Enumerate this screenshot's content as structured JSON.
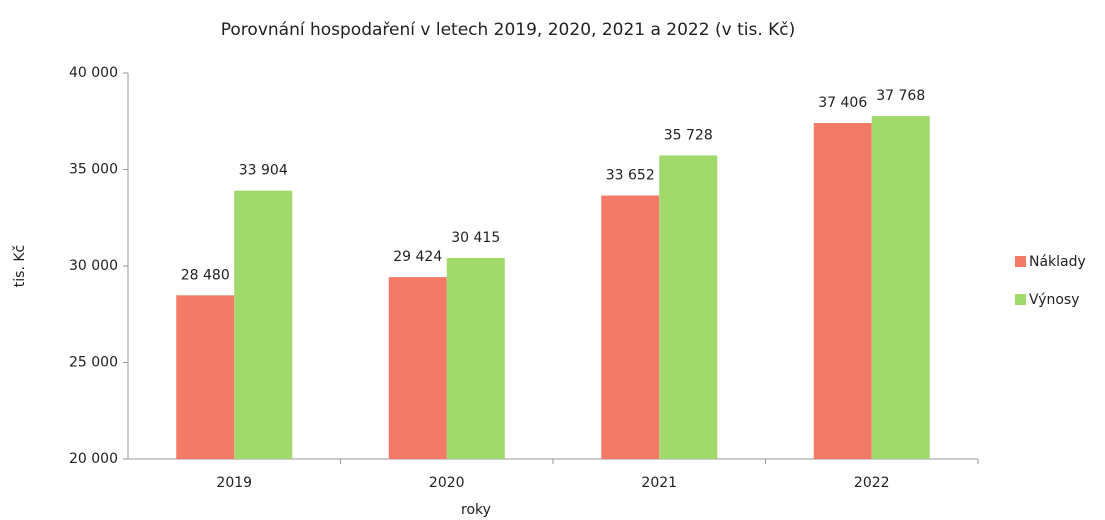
{
  "chart_data": {
    "type": "bar",
    "title": "Porovnání hospodaření v letech 2019, 2020, 2021 a 2022 (v tis. Kč)",
    "x_label": "roky",
    "y_label": "tis. Kč",
    "categories": [
      "2019",
      "2020",
      "2021",
      "2022"
    ],
    "series": [
      {
        "name": "Náklady",
        "color": "#f27a66",
        "values": [
          28480,
          29424,
          33652,
          37406
        ],
        "value_labels": [
          "28 480",
          "29 424",
          "33 652",
          "37 406"
        ]
      },
      {
        "name": "Výnosy",
        "color": "#a2d96c",
        "values": [
          33904,
          30415,
          35728,
          37768
        ],
        "value_labels": [
          "33 904",
          "30 415",
          "35 728",
          "37 768"
        ]
      }
    ],
    "ylim": [
      20000,
      40000
    ],
    "yticks": [
      {
        "value": 20000,
        "label": "20 000"
      },
      {
        "value": 25000,
        "label": "25 000"
      },
      {
        "value": 30000,
        "label": "30 000"
      },
      {
        "value": 35000,
        "label": "35 000"
      },
      {
        "value": 40000,
        "label": "40 000"
      }
    ],
    "legend": "right"
  }
}
